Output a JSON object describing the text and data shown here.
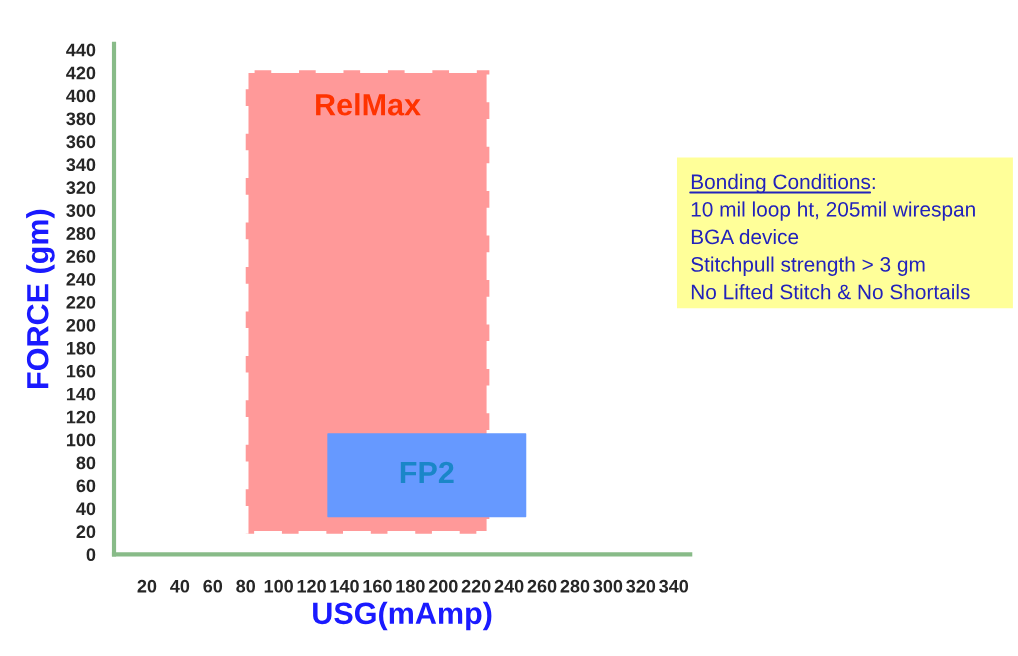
{
  "chart_data": {
    "type": "area",
    "xlabel": "USG(mAmp)",
    "ylabel": "FORCE (gm)",
    "xlim": [
      0,
      350
    ],
    "ylim": [
      0,
      445
    ],
    "xticks": [
      20,
      40,
      60,
      80,
      100,
      120,
      140,
      160,
      180,
      200,
      220,
      240,
      260,
      280,
      300,
      320,
      340
    ],
    "yticks": [
      0,
      20,
      40,
      60,
      80,
      100,
      120,
      140,
      160,
      180,
      200,
      220,
      240,
      260,
      280,
      300,
      320,
      340,
      360,
      380,
      400,
      420,
      440
    ],
    "grid": false,
    "legend": false,
    "series": [
      {
        "name": "RelMax",
        "color": "#ff9999",
        "x": [
          80,
          80,
          228,
          228,
          80
        ],
        "values": [
          18,
          422,
          422,
          18,
          18
        ],
        "line_style": "dashed"
      },
      {
        "name": "FP2",
        "color": "#6699ff",
        "x": [
          130,
          130,
          250,
          250,
          130
        ],
        "values": [
          33,
          105,
          105,
          33,
          33
        ],
        "line_style": "solid"
      }
    ],
    "annotations": [
      "Bonding Conditions:",
      "10 mil loop ht, 205mil wirespan",
      "BGA device",
      "Stitchpull strength > 3 gm",
      "No Lifted Stitch & No Shortails"
    ]
  }
}
